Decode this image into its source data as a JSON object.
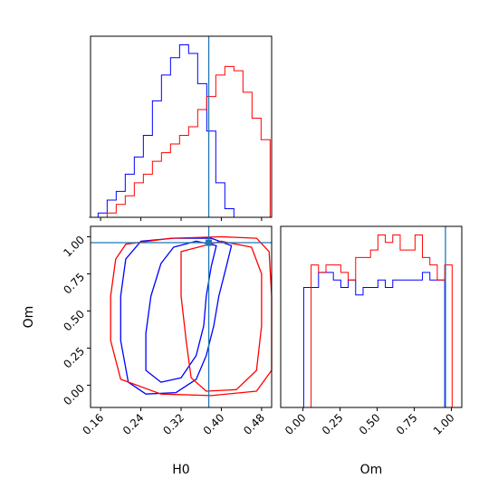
{
  "chart_data": [
    {
      "panel": "H0 marginal",
      "type": "histogram",
      "xlim": [
        0.14,
        0.5
      ],
      "truth_x": 0.375,
      "series": [
        {
          "color": "#0000ff",
          "x": [
            0.146,
            0.164,
            0.182,
            0.2,
            0.218,
            0.236,
            0.254,
            0.272,
            0.29,
            0.308,
            0.326,
            0.344,
            0.362,
            0.38,
            0.398,
            0.416,
            0.434,
            0.452,
            0.47,
            0.488
          ],
          "values": [
            0,
            1,
            4,
            6,
            10,
            14,
            19,
            27,
            33,
            37,
            40,
            38,
            31,
            20,
            8,
            2,
            0,
            0,
            0,
            0
          ]
        },
        {
          "color": "#ff0000",
          "x": [
            0.146,
            0.164,
            0.182,
            0.2,
            0.218,
            0.236,
            0.254,
            0.272,
            0.29,
            0.308,
            0.326,
            0.344,
            0.362,
            0.38,
            0.398,
            0.416,
            0.434,
            0.452,
            0.47,
            0.488
          ],
          "values": [
            0,
            0,
            1,
            3,
            5,
            8,
            10,
            13,
            15,
            17,
            19,
            21,
            25,
            28,
            33,
            35,
            34,
            29,
            23,
            18
          ]
        }
      ]
    },
    {
      "panel": "H0 vs Om",
      "type": "contour",
      "xlabel": "H0",
      "ylabel": "Om",
      "xticks": [
        "0.16",
        "0.24",
        "0.32",
        "0.40",
        "0.48"
      ],
      "yticks": [
        "0.00",
        "0.25",
        "0.50",
        "0.75",
        "1.00"
      ],
      "xlim": [
        0.14,
        0.5
      ],
      "ylim": [
        -0.15,
        1.07
      ],
      "truth": [
        0.375,
        0.96
      ],
      "series": [
        {
          "color": "#0000ff",
          "contours": [
            [
              [
                0.24,
                0.97
              ],
              [
                0.305,
                0.99
              ],
              [
                0.38,
                0.99
              ],
              [
                0.42,
                0.94
              ],
              [
                0.41,
                0.8
              ],
              [
                0.395,
                0.6
              ],
              [
                0.385,
                0.4
              ],
              [
                0.37,
                0.2
              ],
              [
                0.35,
                0.04
              ],
              [
                0.31,
                -0.05
              ],
              [
                0.25,
                -0.06
              ],
              [
                0.215,
                0.02
              ],
              [
                0.2,
                0.3
              ],
              [
                0.2,
                0.6
              ],
              [
                0.21,
                0.85
              ]
            ],
            [
              [
                0.305,
                0.93
              ],
              [
                0.35,
                0.97
              ],
              [
                0.39,
                0.94
              ],
              [
                0.38,
                0.8
              ],
              [
                0.37,
                0.6
              ],
              [
                0.365,
                0.4
              ],
              [
                0.35,
                0.2
              ],
              [
                0.32,
                0.05
              ],
              [
                0.28,
                0.02
              ],
              [
                0.25,
                0.1
              ],
              [
                0.25,
                0.35
              ],
              [
                0.26,
                0.6
              ],
              [
                0.28,
                0.82
              ]
            ]
          ]
        },
        {
          "color": "#ff0000",
          "contours": [
            [
              [
                0.21,
                0.95
              ],
              [
                0.3,
                0.99
              ],
              [
                0.4,
                1.0
              ],
              [
                0.47,
                0.99
              ],
              [
                0.495,
                0.9
              ],
              [
                0.5,
                0.6
              ],
              [
                0.5,
                0.1
              ],
              [
                0.47,
                -0.04
              ],
              [
                0.38,
                -0.07
              ],
              [
                0.28,
                -0.06
              ],
              [
                0.2,
                0.04
              ],
              [
                0.18,
                0.3
              ],
              [
                0.18,
                0.6
              ],
              [
                0.19,
                0.85
              ]
            ],
            [
              [
                0.32,
                0.9
              ],
              [
                0.4,
                0.97
              ],
              [
                0.46,
                0.93
              ],
              [
                0.48,
                0.75
              ],
              [
                0.48,
                0.4
              ],
              [
                0.47,
                0.1
              ],
              [
                0.43,
                -0.03
              ],
              [
                0.37,
                -0.04
              ],
              [
                0.34,
                0.05
              ],
              [
                0.33,
                0.3
              ],
              [
                0.32,
                0.6
              ]
            ]
          ]
        }
      ]
    },
    {
      "panel": "Om marginal",
      "type": "histogram",
      "xlabel": "Om",
      "xticks": [
        "0.00",
        "0.25",
        "0.50",
        "0.75",
        "1.00"
      ],
      "xlim": [
        -0.15,
        1.07
      ],
      "truth_x": 0.96,
      "series": [
        {
          "color": "#0000ff",
          "x": [
            -0.02,
            0.03,
            0.08,
            0.13,
            0.18,
            0.23,
            0.28,
            0.33,
            0.38,
            0.43,
            0.48,
            0.53,
            0.58,
            0.63,
            0.68,
            0.73,
            0.78,
            0.83,
            0.88,
            0.93,
            0.98,
            1.03
          ],
          "values": [
            0,
            16,
            16,
            18,
            18,
            17,
            16,
            17,
            15,
            16,
            16,
            17,
            16,
            17,
            17,
            17,
            17,
            18,
            17,
            17,
            0,
            0
          ]
        },
        {
          "color": "#ff0000",
          "x": [
            -0.02,
            0.03,
            0.08,
            0.13,
            0.18,
            0.23,
            0.28,
            0.33,
            0.38,
            0.43,
            0.48,
            0.53,
            0.58,
            0.63,
            0.68,
            0.73,
            0.78,
            0.83,
            0.88,
            0.93,
            0.98,
            1.03
          ],
          "values": [
            0,
            0,
            19,
            18,
            19,
            19,
            18,
            17,
            20,
            20,
            21,
            23,
            22,
            23,
            21,
            21,
            23,
            20,
            19,
            17,
            19,
            0
          ]
        }
      ]
    }
  ]
}
